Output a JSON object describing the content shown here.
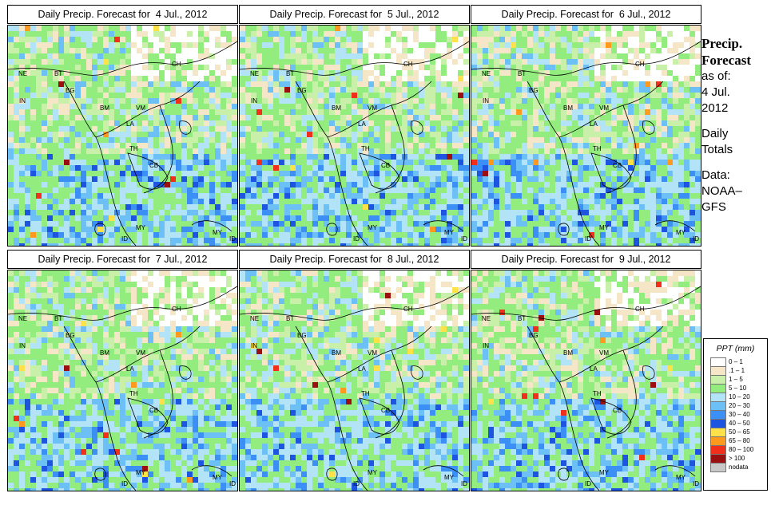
{
  "panels": [
    {
      "title": "Daily Precip. Forecast for  4 Jul., 2012"
    },
    {
      "title": "Daily Precip. Forecast for  5 Jul., 2012"
    },
    {
      "title": "Daily Precip. Forecast for  6 Jul., 2012"
    },
    {
      "title": "Daily Precip. Forecast for  7 Jul., 2012"
    },
    {
      "title": "Daily Precip. Forecast for  8 Jul., 2012"
    },
    {
      "title": "Daily Precip. Forecast for  9 Jul., 2012"
    }
  ],
  "map_labels": [
    "NE",
    "BT",
    "BG",
    "IN",
    "CH",
    "BM",
    "VM",
    "LA",
    "TH",
    "CB",
    "MY",
    "ID",
    "MY",
    "ID"
  ],
  "side": {
    "line1": "Precip.",
    "line2": "Forecast",
    "line3": "as of:",
    "line4": "4 Jul.",
    "line5": "2012",
    "line6": "Daily",
    "line7": "Totals",
    "line8": "Data:",
    "line9": "NOAA–",
    "line10": "GFS"
  },
  "legend": {
    "title": "PPT (mm)",
    "items": [
      {
        "label": "0 – 1",
        "color": "#ffffff"
      },
      {
        "label": ".1 – 1",
        "color": "#f5e6c8"
      },
      {
        "label": "1 – 5",
        "color": "#c9f0a8"
      },
      {
        "label": "5 – 10",
        "color": "#93ec7e"
      },
      {
        "label": "10 – 20",
        "color": "#b3e3f7"
      },
      {
        "label": "20 – 30",
        "color": "#6cc0f5"
      },
      {
        "label": "30 – 40",
        "color": "#3b8ff5"
      },
      {
        "label": "40 – 50",
        "color": "#1d55e0"
      },
      {
        "label": "50 – 65",
        "color": "#ffe24a"
      },
      {
        "label": "65 – 80",
        "color": "#ff9a1f"
      },
      {
        "label": "80 – 100",
        "color": "#f0301a"
      },
      {
        "label": "> 100",
        "color": "#9a1010"
      },
      {
        "label": "nodata",
        "color": "#c8c8c8"
      }
    ]
  }
}
